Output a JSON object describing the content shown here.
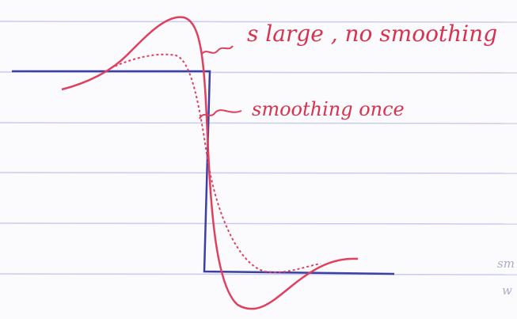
{
  "annotations": {
    "no_smoothing": "s large , no smoothing",
    "smoothing_once": "smoothing once",
    "margin_top": "sm",
    "margin_bottom": "w"
  }
}
